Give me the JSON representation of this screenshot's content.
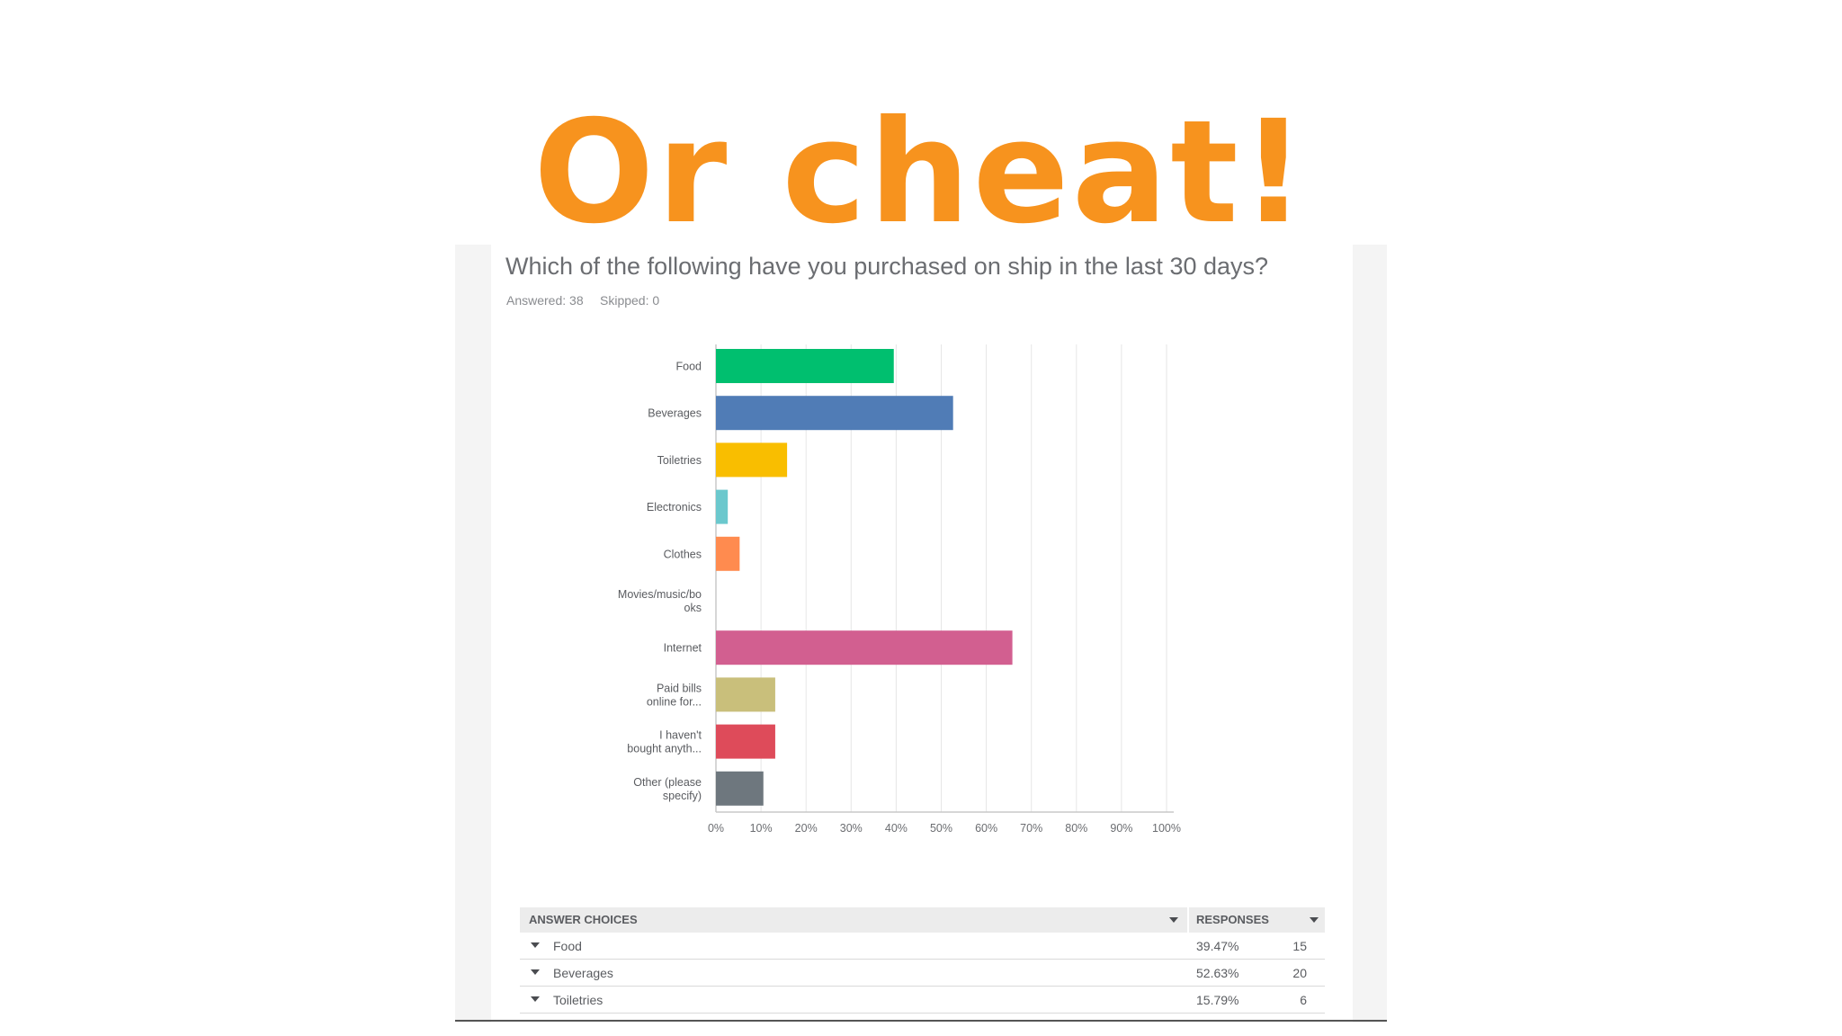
{
  "slide": {
    "title": "Or cheat!"
  },
  "question": {
    "title": "Which of the following have you purchased on ship in the last 30 days?",
    "answered": "Answered: 38",
    "skipped": "Skipped: 0"
  },
  "chart_data": {
    "type": "bar",
    "orientation": "horizontal",
    "categories": [
      [
        "Food"
      ],
      [
        "Beverages"
      ],
      [
        "Toiletries"
      ],
      [
        "Electronics"
      ],
      [
        "Clothes"
      ],
      [
        "Movies/music/bo",
        "oks"
      ],
      [
        "Internet"
      ],
      [
        "Paid bills",
        "online for..."
      ],
      [
        "I haven't",
        "bought anyth..."
      ],
      [
        "Other (please",
        "specify)"
      ]
    ],
    "values": [
      39.47,
      52.63,
      15.79,
      2.63,
      5.26,
      0,
      65.79,
      13.16,
      13.16,
      10.53
    ],
    "colors": [
      "#00bf6f",
      "#507cb6",
      "#f9be00",
      "#6bc8cd",
      "#ff8b4f",
      "#7f7fff",
      "#d25f90",
      "#c9bf7b",
      "#de4b5a",
      "#6e777e"
    ],
    "x_ticks": [
      "0%",
      "10%",
      "20%",
      "30%",
      "40%",
      "50%",
      "60%",
      "70%",
      "80%",
      "90%",
      "100%"
    ],
    "xlim": [
      0,
      100
    ],
    "grid": true
  },
  "table": {
    "headers": {
      "choice": "ANSWER CHOICES",
      "responses": "RESPONSES"
    },
    "rows": [
      {
        "label": "Food",
        "pct": "39.47%",
        "count": "15"
      },
      {
        "label": "Beverages",
        "pct": "52.63%",
        "count": "20"
      },
      {
        "label": "Toiletries",
        "pct": "15.79%",
        "count": "6"
      }
    ]
  }
}
